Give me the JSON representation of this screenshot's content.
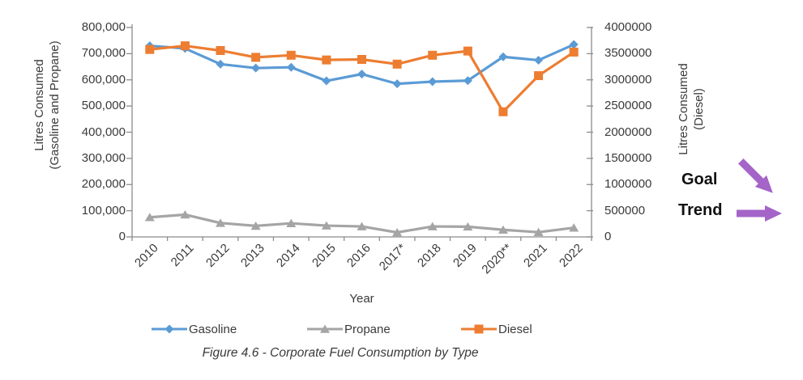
{
  "figure": {
    "caption": "Figure 4.6 - Corporate Fuel Consumption by Type",
    "goal_label": "Goal",
    "trend_label": "Trend",
    "goal_arrow_direction": "down-right",
    "trend_arrow_direction": "right"
  },
  "colors": {
    "gasoline": "#5B9BD5",
    "propane": "#A5A5A5",
    "diesel": "#ED7D31",
    "arrow": "#A464C8",
    "axis_line": "#8C8C8C",
    "text": "#3A3A3A"
  },
  "chart_data": {
    "type": "line",
    "title": "",
    "categories": [
      "2010",
      "2011",
      "2012",
      "2013",
      "2014",
      "2015",
      "2016",
      "2017*",
      "2018",
      "2019",
      "2020**",
      "2021",
      "2022"
    ],
    "series": [
      {
        "name": "Gasoline",
        "axis": "left",
        "marker": "diamond",
        "color": "#5B9BD5",
        "values": [
          730000,
          720000,
          660000,
          645000,
          648000,
          596000,
          622000,
          585000,
          593000,
          597000,
          688000,
          675000,
          735000
        ]
      },
      {
        "name": "Propane",
        "axis": "left",
        "marker": "triangle",
        "color": "#A5A5A5",
        "values": [
          75000,
          85000,
          53000,
          42000,
          52000,
          43000,
          40000,
          17000,
          40000,
          39000,
          27000,
          18000,
          35000
        ]
      },
      {
        "name": "Diesel",
        "axis": "right",
        "marker": "square",
        "color": "#ED7D31",
        "values": [
          3580000,
          3650000,
          3560000,
          3430000,
          3470000,
          3380000,
          3390000,
          3300000,
          3470000,
          3550000,
          2390000,
          3080000,
          3530000
        ]
      }
    ],
    "xlabel": "Year",
    "ylabel_left": "Litres Consumed (Gasoline and Propane)",
    "ylabel_left_lines": [
      "Litres Consumed",
      "(Gasoline and Propane)"
    ],
    "ylabel_right": "Litres Consumed (Diesel)",
    "ylabel_right_lines": [
      "Litres Consumed",
      "(Diesel)"
    ],
    "ylim_left": [
      0,
      800000
    ],
    "ylim_right": [
      0,
      4000000
    ],
    "left_tick_labels": [
      "800,000",
      "700,000",
      "600,000",
      "500,000",
      "400,000",
      "300,000",
      "200,000",
      "100,000",
      "0"
    ],
    "right_tick_labels": [
      "4000000",
      "3500000",
      "3000000",
      "2500000",
      "2000000",
      "1500000",
      "1000000",
      "500000",
      "0"
    ],
    "grid": false,
    "legend_position": "bottom"
  }
}
